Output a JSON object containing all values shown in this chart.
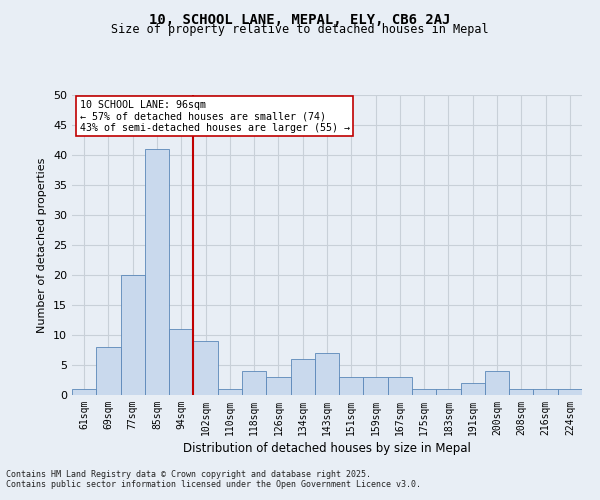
{
  "title1": "10, SCHOOL LANE, MEPAL, ELY, CB6 2AJ",
  "title2": "Size of property relative to detached houses in Mepal",
  "xlabel": "Distribution of detached houses by size in Mepal",
  "ylabel": "Number of detached properties",
  "bin_labels": [
    "61sqm",
    "69sqm",
    "77sqm",
    "85sqm",
    "94sqm",
    "102sqm",
    "110sqm",
    "118sqm",
    "126sqm",
    "134sqm",
    "143sqm",
    "151sqm",
    "159sqm",
    "167sqm",
    "175sqm",
    "183sqm",
    "191sqm",
    "200sqm",
    "208sqm",
    "216sqm",
    "224sqm"
  ],
  "bar_heights": [
    1,
    8,
    20,
    41,
    11,
    9,
    1,
    4,
    3,
    6,
    7,
    3,
    3,
    3,
    1,
    1,
    2,
    4,
    1,
    1,
    1
  ],
  "bar_color": "#c9d9ed",
  "bar_edgecolor": "#5a87b8",
  "grid_color": "#c8d0d8",
  "annotation_line_color": "#c00000",
  "annotation_box_text": "10 SCHOOL LANE: 96sqm\n← 57% of detached houses are smaller (74)\n43% of semi-detached houses are larger (55) →",
  "footer_line1": "Contains HM Land Registry data © Crown copyright and database right 2025.",
  "footer_line2": "Contains public sector information licensed under the Open Government Licence v3.0.",
  "ylim": [
    0,
    50
  ],
  "yticks": [
    0,
    5,
    10,
    15,
    20,
    25,
    30,
    35,
    40,
    45,
    50
  ],
  "background_color": "#e8eef5",
  "plot_bg_color": "#e8eef5"
}
